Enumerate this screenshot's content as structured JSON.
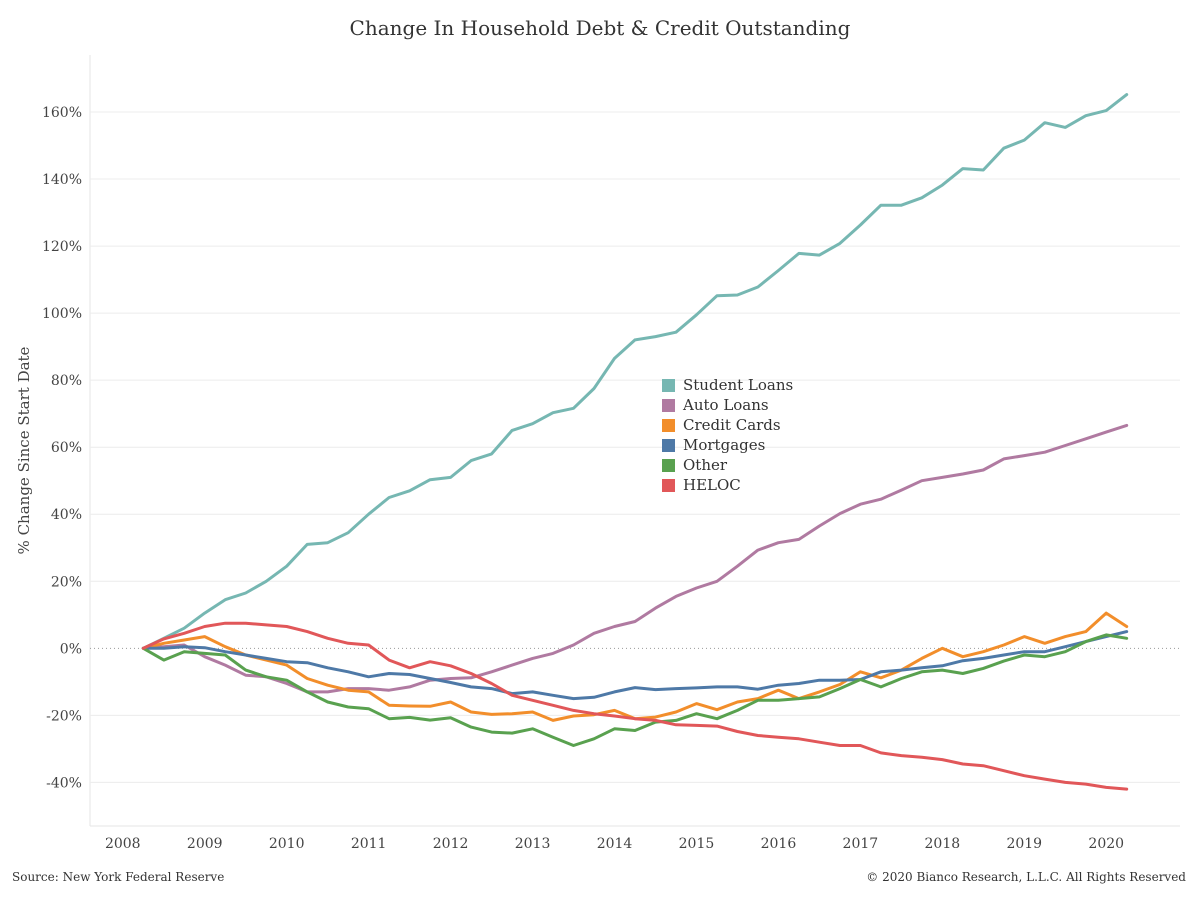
{
  "header": {
    "title": "Change In Household Debt & Credit Outstanding"
  },
  "footer": {
    "source": "Source: New York Federal Reserve",
    "copyright": "© 2020 Bianco Research, L.L.C. All Rights Reserved"
  },
  "chart_data": {
    "type": "line",
    "title": "Change In Household Debt & Credit Outstanding",
    "ylabel": "% Change Since Start Date",
    "xlabel": "",
    "ylim": [
      -53,
      177
    ],
    "xlim": [
      2007.6,
      2020.9
    ],
    "yticks": [
      -40,
      -20,
      0,
      20,
      40,
      60,
      80,
      100,
      120,
      140,
      160
    ],
    "ytick_labels": [
      "-40%",
      "-20%",
      "0%",
      "20%",
      "40%",
      "60%",
      "80%",
      "100%",
      "120%",
      "140%",
      "160%"
    ],
    "xticks": [
      2008,
      2009,
      2010,
      2011,
      2012,
      2013,
      2014,
      2015,
      2016,
      2017,
      2018,
      2019,
      2020
    ],
    "xtick_labels": [
      "2008",
      "2009",
      "2010",
      "2011",
      "2012",
      "2013",
      "2014",
      "2015",
      "2016",
      "2017",
      "2018",
      "2019",
      "2020"
    ],
    "grid": "horizontal",
    "zero_line": "dotted",
    "legend_position": "center",
    "x_start": 2008.25,
    "x_step": 0.25,
    "series": [
      {
        "name": "Student Loans",
        "color": "#76b7b2",
        "values": [
          0,
          3,
          6,
          10.5,
          14.5,
          16.5,
          20,
          24.5,
          31,
          31.5,
          34.5,
          40,
          45,
          47,
          50.3,
          51,
          56,
          58,
          65,
          67,
          70.3,
          71.6,
          77.5,
          86.5,
          92,
          93,
          94.3,
          99.5,
          105.2,
          105.4,
          107.8,
          112.7,
          117.8,
          117.3,
          120.8,
          126.3,
          132.2,
          132.2,
          134.4,
          138.2,
          143.1,
          142.7,
          149.2,
          151.6,
          156.8,
          155.4,
          158.9,
          160.4,
          165.2
        ]
      },
      {
        "name": "Auto Loans",
        "color": "#b07aa1",
        "values": [
          0,
          0.5,
          1,
          -2.5,
          -5,
          -8,
          -8.5,
          -10.5,
          -13,
          -13,
          -12,
          -12,
          -12.5,
          -11.5,
          -9.5,
          -9,
          -8.8,
          -7,
          -5,
          -3,
          -1.5,
          1,
          4.5,
          6.5,
          8,
          12,
          15.5,
          18,
          20,
          24.5,
          29.3,
          31.5,
          32.5,
          36.5,
          40.2,
          43,
          44.5,
          47.2,
          50,
          51,
          52,
          53.2,
          56.5,
          57.5,
          58.5,
          60.5,
          62.5,
          64.5,
          66.5
        ]
      },
      {
        "name": "Credit Cards",
        "color": "#f28e2b",
        "values": [
          0,
          1.5,
          2.5,
          3.5,
          0.5,
          -2,
          -3.5,
          -5,
          -9,
          -11,
          -12.5,
          -13,
          -17,
          -17.2,
          -17.3,
          -16,
          -19,
          -19.7,
          -19.5,
          -19,
          -21.5,
          -20.2,
          -19.8,
          -18.5,
          -21,
          -20.5,
          -19,
          -16.5,
          -18.3,
          -16,
          -15,
          -12.5,
          -15,
          -13,
          -10.8,
          -7,
          -8.8,
          -6.5,
          -3,
          0,
          -2.5,
          -1,
          1,
          3.5,
          1.5,
          3.5,
          5,
          10.5,
          6.5
        ]
      },
      {
        "name": "Mortgages",
        "color": "#4e79a7",
        "values": [
          0,
          0,
          0.5,
          0.2,
          -1,
          -2,
          -3,
          -4,
          -4.3,
          -5.8,
          -7,
          -8.5,
          -7.5,
          -7.8,
          -9,
          -10.2,
          -11.5,
          -12,
          -13.5,
          -13,
          -14,
          -15,
          -14.6,
          -13,
          -11.7,
          -12.3,
          -12,
          -11.8,
          -11.5,
          -11.5,
          -12.2,
          -11,
          -10.5,
          -9.5,
          -9.5,
          -9.3,
          -7,
          -6.5,
          -5.8,
          -5.2,
          -3.7,
          -3,
          -2,
          -1,
          -1,
          0.5,
          2,
          3.5,
          5
        ]
      },
      {
        "name": "Other",
        "color": "#59a14f",
        "values": [
          0,
          -3.5,
          -1,
          -1.5,
          -2,
          -6.5,
          -8.5,
          -9.5,
          -13,
          -16,
          -17.5,
          -18,
          -21,
          -20.6,
          -21.4,
          -20.7,
          -23.5,
          -25,
          -25.3,
          -24,
          -26.5,
          -29,
          -27,
          -24,
          -24.5,
          -22,
          -21.5,
          -19.5,
          -21,
          -18.5,
          -15.5,
          -15.5,
          -15,
          -14.5,
          -12,
          -9.3,
          -11.5,
          -9,
          -7,
          -6.5,
          -7.5,
          -6,
          -3.8,
          -2,
          -2.5,
          -1,
          2,
          4,
          3
        ]
      },
      {
        "name": "HELOC",
        "color": "#e15759",
        "values": [
          0,
          2.8,
          4.5,
          6.5,
          7.5,
          7.5,
          7,
          6.5,
          5,
          3,
          1.5,
          1,
          -3.5,
          -5.8,
          -4,
          -5.2,
          -7.5,
          -10.5,
          -14,
          -15.5,
          -17,
          -18.5,
          -19.5,
          -20.2,
          -21,
          -21.5,
          -22.8,
          -23,
          -23.2,
          -24.8,
          -26,
          -26.5,
          -27,
          -28,
          -29,
          -29,
          -31.2,
          -32,
          -32.5,
          -33.2,
          -34.5,
          -35,
          -36.5,
          -38,
          -39,
          -40,
          -40.5,
          -41.5,
          -42
        ]
      }
    ]
  }
}
